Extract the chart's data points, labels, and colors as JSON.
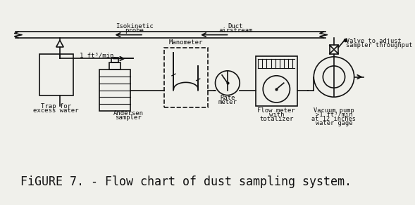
{
  "title": "FiGURE 7. - Flow chart of dust sampling system.",
  "title_fontsize": 12,
  "bg_color": "#f0f0eb",
  "line_color": "#111111",
  "lw": 1.2,
  "components": {
    "trap_label": [
      "Trap for",
      "excess water"
    ],
    "andersen_label": [
      "Andersen",
      "sampler"
    ],
    "manometer_label": "Manometer",
    "rate_meter_label": [
      "Rate",
      "meter"
    ],
    "flow_meter_label": [
      "Flow meter",
      "with",
      "totalizer"
    ],
    "vacuum_pump_label": [
      "Vacuum pump",
      ">1 ft³/min",
      "at 12 inches",
      "water gage"
    ],
    "valve_label": [
      "Valve to adjust",
      "sampler throughput"
    ],
    "isokinetic_label": [
      "Isokinetic",
      "probe"
    ],
    "duct_label": [
      "Duct",
      "airstream"
    ],
    "flow_rate_label": "1 ft³/min"
  }
}
